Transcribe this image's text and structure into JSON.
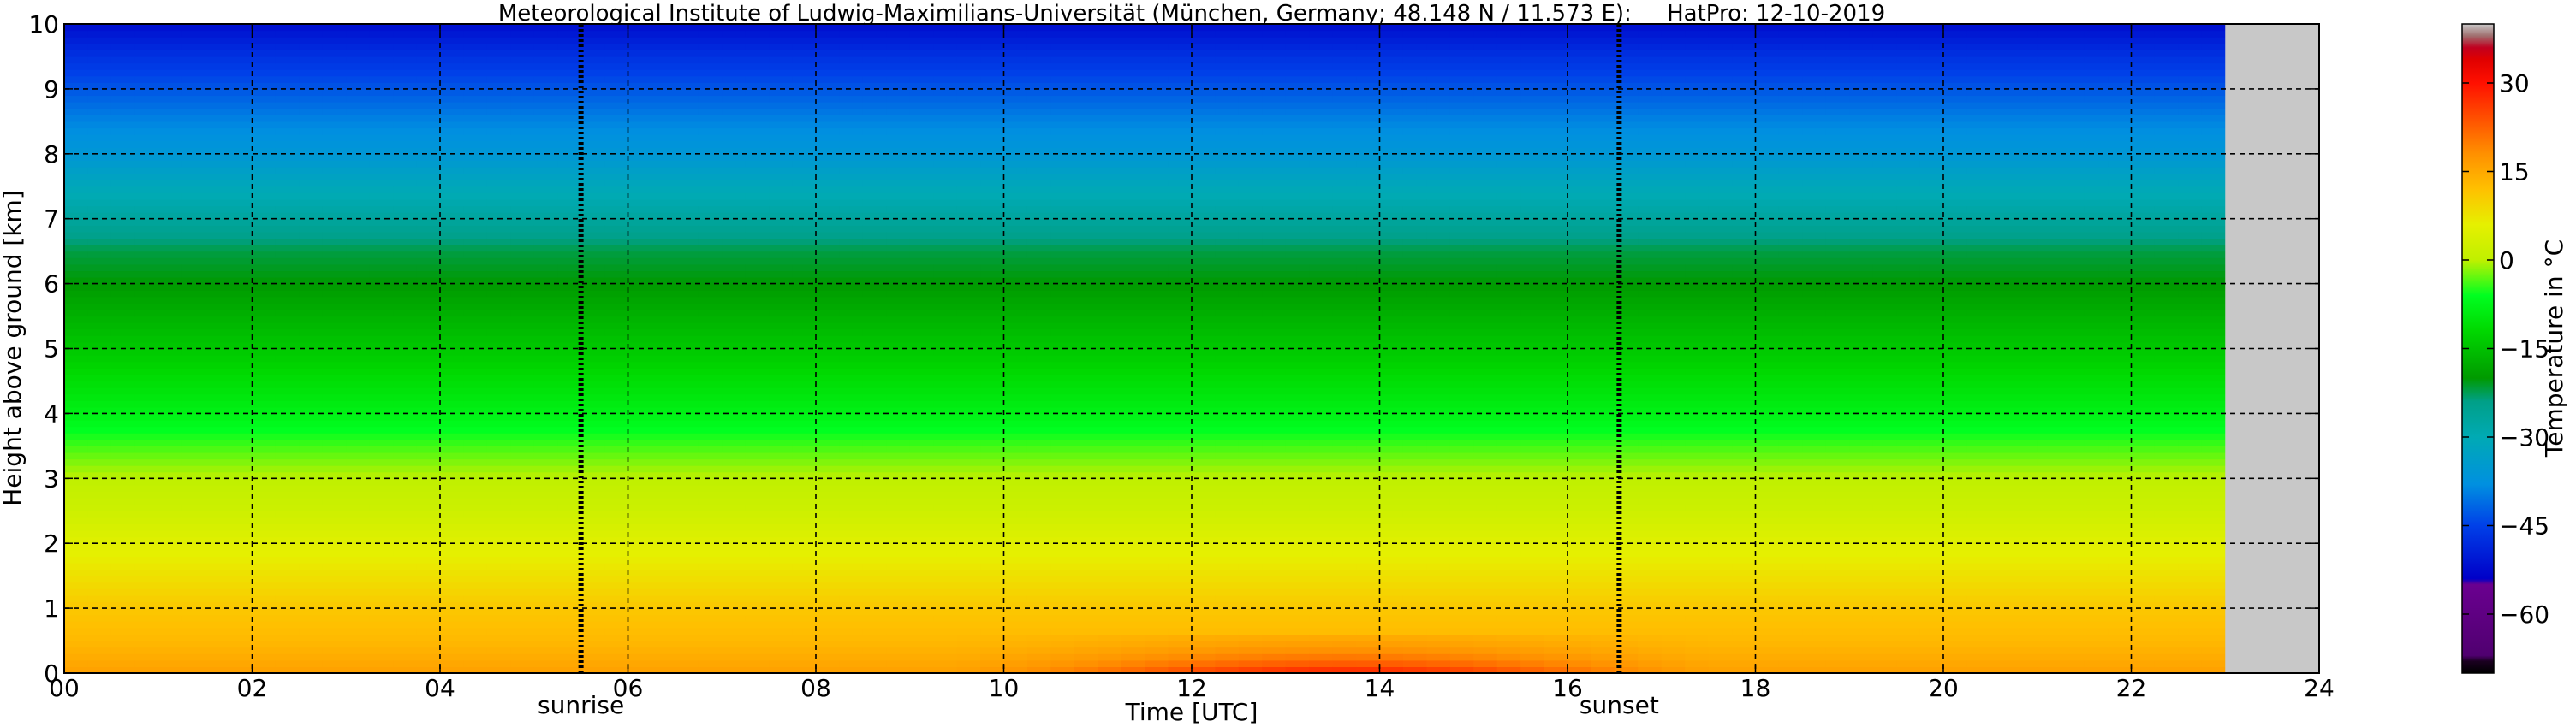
{
  "chart_data": {
    "type": "heatmap",
    "title": "Meteorological Institute of Ludwig-Maximilians-Universität (München, Germany; 48.148 N / 11.573 E):     HatPro: 12-10-2019",
    "xlabel": "Time [UTC]",
    "ylabel": "Height above ground [km]",
    "xlim": [
      0,
      24
    ],
    "ylim": [
      0,
      10
    ],
    "x_ticks": [
      0,
      2,
      4,
      6,
      8,
      10,
      12,
      14,
      16,
      18,
      20,
      22,
      24
    ],
    "x_tick_labels": [
      "00",
      "02",
      "04",
      "06",
      "08",
      "10",
      "12",
      "14",
      "16",
      "18",
      "20",
      "22",
      "24"
    ],
    "y_ticks": [
      0,
      1,
      2,
      3,
      4,
      5,
      6,
      7,
      8,
      9,
      10
    ],
    "y_tick_labels": [
      "0",
      "1",
      "2",
      "3",
      "4",
      "5",
      "6",
      "7",
      "8",
      "9",
      "10"
    ],
    "grid": true,
    "data_end_time": 23.0,
    "no_data_color": "#c8c8c8",
    "events": [
      {
        "label": "sunrise",
        "time": 5.5
      },
      {
        "label": "sunset",
        "time": 16.55
      }
    ],
    "temperature_profile": {
      "heights_km": [
        0,
        0.5,
        1,
        1.5,
        2,
        2.5,
        3,
        3.5,
        4,
        4.5,
        5,
        5.5,
        6,
        6.5,
        7,
        7.5,
        8,
        8.5,
        9,
        9.5,
        10
      ],
      "values_c": [
        16,
        13,
        11,
        8,
        5,
        2,
        0,
        -4,
        -8,
        -11,
        -14,
        -17,
        -20,
        -22,
        -27,
        -31,
        -36,
        -39,
        -43,
        -47,
        -52
      ]
    },
    "afternoon_warming": {
      "start": 9.5,
      "end": 17.5,
      "peak_time": 13.8,
      "peak_delta_c": 13,
      "depth_km": 0.3
    },
    "colorbar": {
      "label": "Temperature in °C",
      "vmin": -70,
      "vmax": 40,
      "ticks": [
        -60,
        -45,
        -30,
        -15,
        0,
        15,
        30
      ],
      "tick_labels": [
        "−60",
        "−45",
        "−30",
        "−15",
        "0",
        "15",
        "30"
      ],
      "colors": [
        {
          "value": -70,
          "color": "#000000"
        },
        {
          "value": -68,
          "color": "#1a0020"
        },
        {
          "value": -67,
          "color": "#500070"
        },
        {
          "value": -55,
          "color": "#6a0090"
        },
        {
          "value": -54,
          "color": "#0000c8"
        },
        {
          "value": -45,
          "color": "#0040e8"
        },
        {
          "value": -38,
          "color": "#0090e0"
        },
        {
          "value": -30,
          "color": "#00aab4"
        },
        {
          "value": -24,
          "color": "#00a088"
        },
        {
          "value": -20,
          "color": "#009a00"
        },
        {
          "value": -12,
          "color": "#00d800"
        },
        {
          "value": -6,
          "color": "#00ff20"
        },
        {
          "value": 0,
          "color": "#c0f000"
        },
        {
          "value": 6,
          "color": "#e6f000"
        },
        {
          "value": 12,
          "color": "#ffc000"
        },
        {
          "value": 18,
          "color": "#ff9000"
        },
        {
          "value": 24,
          "color": "#ff5000"
        },
        {
          "value": 30,
          "color": "#ff1000"
        },
        {
          "value": 34,
          "color": "#e00000"
        },
        {
          "value": 36,
          "color": "#c00020"
        },
        {
          "value": 38,
          "color": "#a07070"
        },
        {
          "value": 40,
          "color": "#c8c8c8"
        }
      ]
    }
  }
}
